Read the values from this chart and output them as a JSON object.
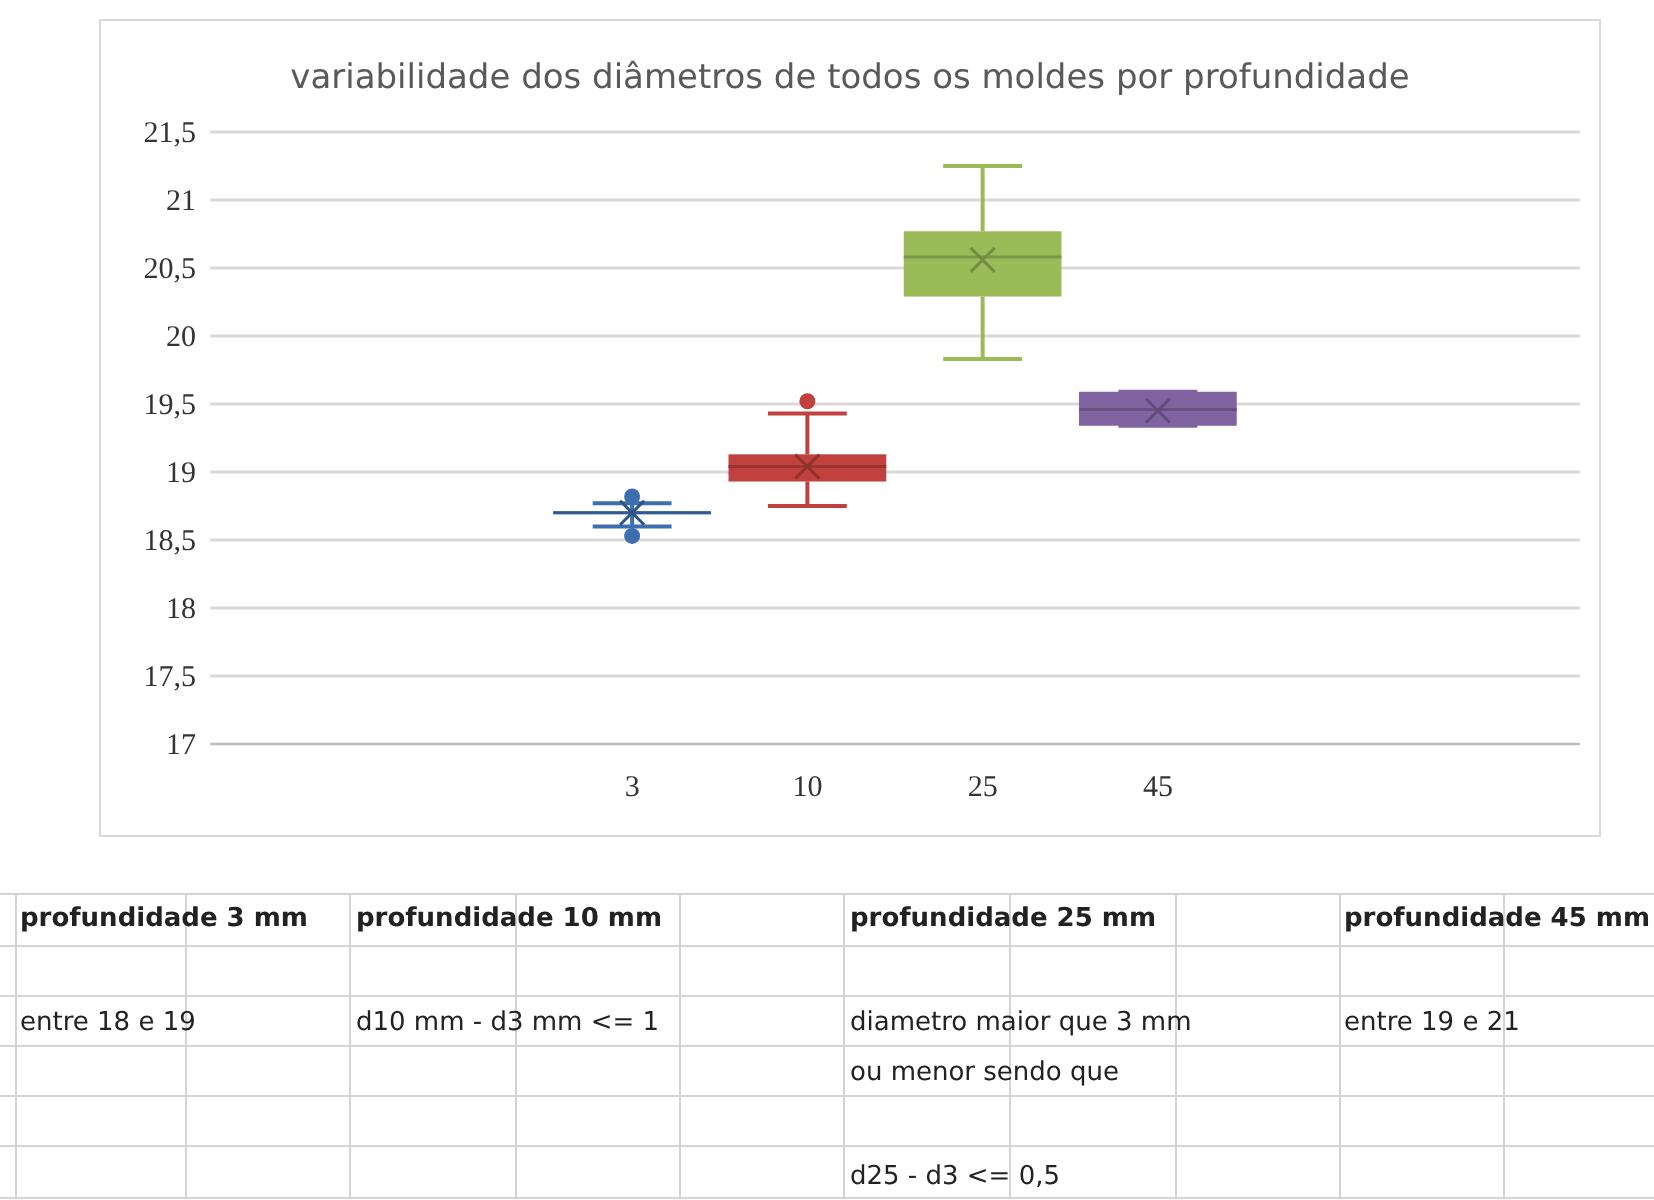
{
  "chart_data": {
    "type": "box",
    "title": "variabilidade dos diâmetros de todos os moldes por profundidade",
    "categories": [
      null,
      null,
      "3",
      "10",
      "25",
      "45",
      null,
      null
    ],
    "boxes": [
      null,
      null,
      {
        "low": 18.6,
        "q1": 18.69,
        "median": 18.7,
        "q3": 18.71,
        "high": 18.77,
        "mean": 18.7,
        "outliers": [
          18.82,
          18.53
        ]
      },
      {
        "low": 18.75,
        "q1": 18.93,
        "median": 19.04,
        "q3": 19.13,
        "high": 19.43,
        "mean": 19.04,
        "outliers": [
          19.52
        ]
      },
      {
        "low": 19.83,
        "q1": 20.29,
        "median": 20.58,
        "q3": 20.77,
        "high": 21.25,
        "mean": 20.56
      },
      {
        "low": 19.34,
        "q1": 19.34,
        "median": 19.46,
        "q3": 19.59,
        "high": 19.59,
        "mean": 19.45
      },
      null,
      null
    ],
    "colors": [
      null,
      null,
      "#3d6fb0",
      "#c0413d",
      "#9bbb59",
      "#8064a2",
      null,
      null
    ],
    "ylim": [
      17,
      21.5
    ],
    "yticks": [
      {
        "value": 17,
        "label": "17"
      },
      {
        "value": 17.5,
        "label": "17,5"
      },
      {
        "value": 18,
        "label": "18"
      },
      {
        "value": 18.5,
        "label": "18,5"
      },
      {
        "value": 19,
        "label": "19"
      },
      {
        "value": 19.5,
        "label": "19,5"
      },
      {
        "value": 20,
        "label": "20"
      },
      {
        "value": 20.5,
        "label": "20,5"
      },
      {
        "value": 21,
        "label": "21"
      },
      {
        "value": 21.5,
        "label": "21,5"
      }
    ],
    "grid": "y",
    "annotations": [
      "profundidade 3 mm",
      "profundidade 10 mm",
      "profundidade 25 mm",
      "profundidade 45 mm",
      "entre 18 e 19",
      "d10 mm - d3 mm <= 1",
      "diametro maior que 3 mm",
      "ou menor sendo que",
      "entre 19 e 21",
      "d25 - d3 <= 0,5"
    ]
  }
}
